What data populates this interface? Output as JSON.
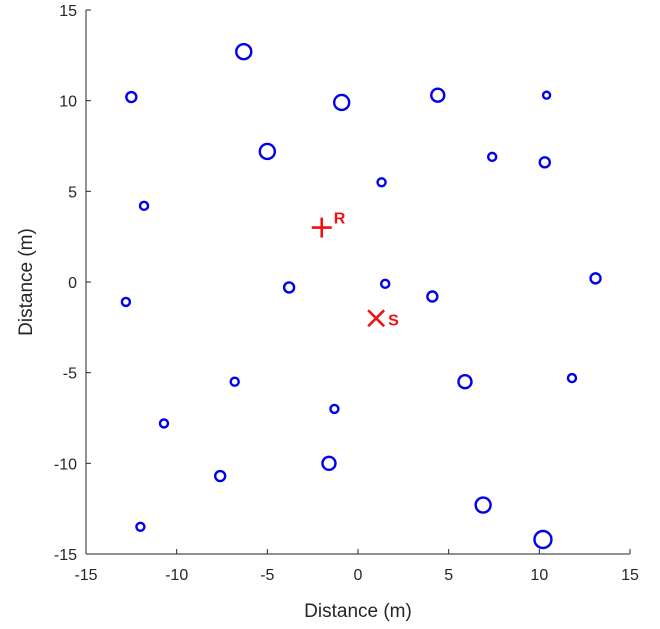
{
  "chart_data": {
    "type": "scatter",
    "xlabel": "Distance (m)",
    "ylabel": "Distance (m)",
    "xlim": [
      -15,
      15
    ],
    "ylim": [
      -15,
      15
    ],
    "xticks": [
      -15,
      -10,
      -5,
      0,
      5,
      10,
      15
    ],
    "yticks": [
      -15,
      -10,
      -5,
      0,
      5,
      10,
      15
    ],
    "grid": false,
    "series": [
      {
        "marker": "circle",
        "color": "#0000ee",
        "points": [
          {
            "x": -6.3,
            "y": 12.7,
            "size": "large"
          },
          {
            "x": -12.5,
            "y": 10.2,
            "size": "medium"
          },
          {
            "x": -0.9,
            "y": 9.9,
            "size": "large"
          },
          {
            "x": 4.4,
            "y": 10.3,
            "size": "medium-large"
          },
          {
            "x": 10.4,
            "y": 10.3,
            "size": "small"
          },
          {
            "x": -5.0,
            "y": 7.2,
            "size": "large"
          },
          {
            "x": 7.4,
            "y": 6.9,
            "size": "small-medium"
          },
          {
            "x": 10.3,
            "y": 6.6,
            "size": "medium"
          },
          {
            "x": 1.3,
            "y": 5.5,
            "size": "small-medium"
          },
          {
            "x": -11.8,
            "y": 4.2,
            "size": "small-medium"
          },
          {
            "x": -3.8,
            "y": -0.3,
            "size": "medium"
          },
          {
            "x": 1.5,
            "y": -0.1,
            "size": "small-medium"
          },
          {
            "x": 4.1,
            "y": -0.8,
            "size": "medium"
          },
          {
            "x": 13.1,
            "y": 0.2,
            "size": "medium"
          },
          {
            "x": -12.8,
            "y": -1.1,
            "size": "small-medium"
          },
          {
            "x": -6.8,
            "y": -5.5,
            "size": "small-medium"
          },
          {
            "x": 5.9,
            "y": -5.5,
            "size": "medium-large"
          },
          {
            "x": 11.8,
            "y": -5.3,
            "size": "small-medium"
          },
          {
            "x": -10.7,
            "y": -7.8,
            "size": "small-medium"
          },
          {
            "x": -1.3,
            "y": -7.0,
            "size": "small-medium"
          },
          {
            "x": -7.6,
            "y": -10.7,
            "size": "medium"
          },
          {
            "x": -1.6,
            "y": -10.0,
            "size": "medium-large"
          },
          {
            "x": 6.9,
            "y": -12.3,
            "size": "large"
          },
          {
            "x": -12.0,
            "y": -13.5,
            "size": "small-medium"
          },
          {
            "x": 10.2,
            "y": -14.2,
            "size": "xlarge"
          }
        ]
      }
    ],
    "markers": [
      {
        "label": "R",
        "x": -2.0,
        "y": 3.0,
        "shape": "plus",
        "color": "#ee1111"
      },
      {
        "label": "S",
        "x": 1.0,
        "y": -2.0,
        "shape": "cross",
        "color": "#ee1111"
      }
    ]
  }
}
